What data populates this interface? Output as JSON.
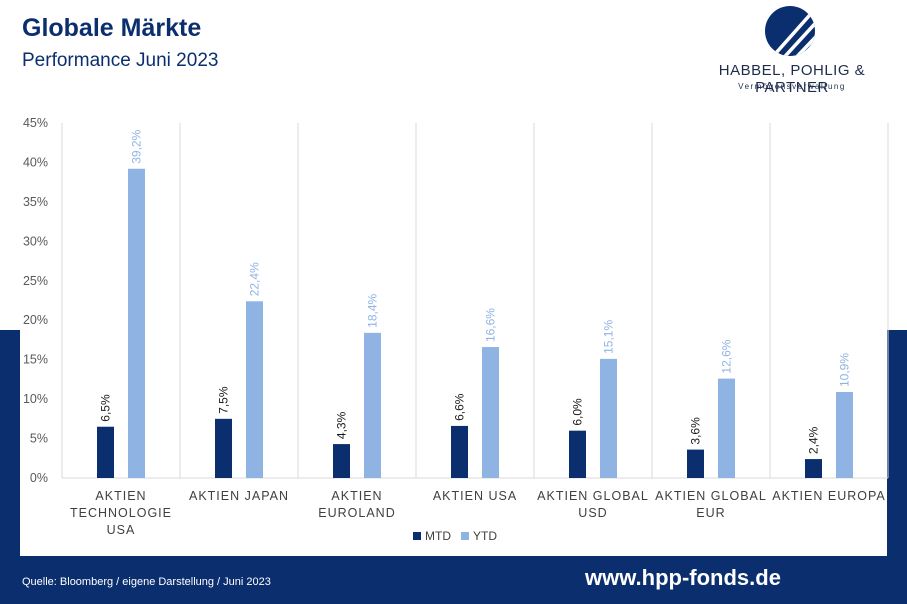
{
  "header": {
    "title": "Globale Märkte",
    "subtitle": "Performance Juni 2023"
  },
  "logo": {
    "name": "HABBEL, POHLIG & PARTNER",
    "tagline": "Vermögensverwaltung"
  },
  "footer": {
    "source": "Quelle: Bloomberg / eigene Darstellung / Juni 2023",
    "url": "www.hpp-fonds.de"
  },
  "colors": {
    "mtd": "#0b2f6e",
    "ytd": "#8fb4e3",
    "brand": "#0b2f6e"
  },
  "chart_data": {
    "type": "bar",
    "categories": [
      [
        "AKTIEN",
        "TECHNOLOGIE",
        "USA"
      ],
      [
        "AKTIEN JAPAN"
      ],
      [
        "AKTIEN",
        "EUROLAND"
      ],
      [
        "AKTIEN USA"
      ],
      [
        "AKTIEN GLOBAL",
        "USD"
      ],
      [
        "AKTIEN GLOBAL",
        "EUR"
      ],
      [
        "AKTIEN EUROPA"
      ]
    ],
    "series": [
      {
        "name": "MTD",
        "values": [
          6.5,
          7.5,
          4.3,
          6.6,
          6.0,
          3.6,
          2.4
        ],
        "labels": [
          "6,5%",
          "7,5%",
          "4,3%",
          "6,6%",
          "6,0%",
          "3,6%",
          "2,4%"
        ]
      },
      {
        "name": "YTD",
        "values": [
          39.2,
          22.4,
          18.4,
          16.6,
          15.1,
          12.6,
          10.9
        ],
        "labels": [
          "39,2%",
          "22,4%",
          "18,4%",
          "16,6%",
          "15,1%",
          "12,6%",
          "10,9%"
        ]
      }
    ],
    "ylim": [
      0,
      45
    ],
    "yticks": [
      0,
      5,
      10,
      15,
      20,
      25,
      30,
      35,
      40,
      45
    ],
    "ytick_labels": [
      "0%",
      "5%",
      "10%",
      "15%",
      "20%",
      "25%",
      "30%",
      "35%",
      "40%",
      "45%"
    ],
    "grid": "vertical separators between categories",
    "legend_position": "bottom-center"
  }
}
